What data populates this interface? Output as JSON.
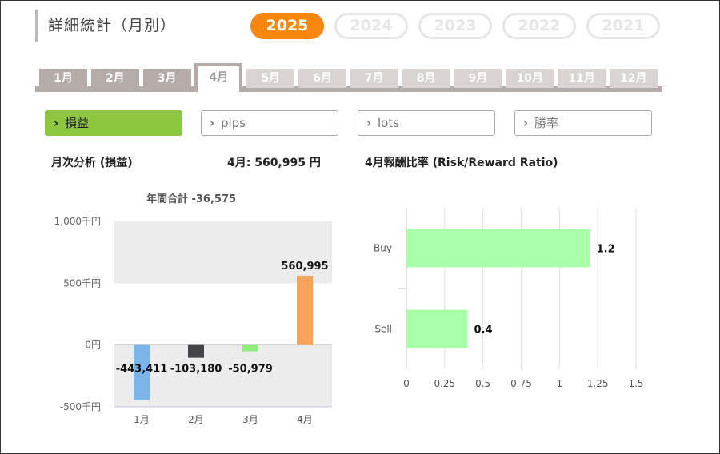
{
  "header": {
    "title": "詳細統計（月別）"
  },
  "years": [
    {
      "label": "2025",
      "active": true
    },
    {
      "label": "2024",
      "active": false
    },
    {
      "label": "2023",
      "active": false
    },
    {
      "label": "2022",
      "active": false
    },
    {
      "label": "2021",
      "active": false
    }
  ],
  "months": [
    {
      "label": "1月",
      "state": "enabled"
    },
    {
      "label": "2月",
      "state": "enabled"
    },
    {
      "label": "3月",
      "state": "enabled"
    },
    {
      "label": "4月",
      "state": "active"
    },
    {
      "label": "5月",
      "state": "disabled"
    },
    {
      "label": "6月",
      "state": "disabled"
    },
    {
      "label": "7月",
      "state": "disabled"
    },
    {
      "label": "8月",
      "state": "disabled"
    },
    {
      "label": "9月",
      "state": "disabled"
    },
    {
      "label": "10月",
      "state": "disabled"
    },
    {
      "label": "11月",
      "state": "disabled"
    },
    {
      "label": "12月",
      "state": "disabled"
    }
  ],
  "metrics": [
    {
      "label": "損益",
      "active": true
    },
    {
      "label": "pips",
      "active": false
    },
    {
      "label": "lots",
      "active": false
    },
    {
      "label": "勝率",
      "active": false
    }
  ],
  "labels": {
    "monthly_analysis": "月次分析 (損益)",
    "month_total": "4月:  560,995 円",
    "rr_title": "4月報酬比率 (Risk/Reward Ratio)"
  },
  "colors": {
    "accent": "#f7870e",
    "metric_active": "#8dc63f",
    "tab_gray": "#b5aba8"
  },
  "chart_data": [
    {
      "type": "bar",
      "title": "年間合計 -36,575",
      "categories": [
        "1月",
        "2月",
        "3月",
        "4月"
      ],
      "values": [
        -443411,
        -103180,
        -50979,
        560995
      ],
      "value_labels": [
        "-443,411",
        "-103,180",
        "-50,979",
        "560,995"
      ],
      "bar_colors": [
        "#7cb5ec",
        "#434348",
        "#90ed7d",
        "#f7a35c"
      ],
      "ylim": [
        -500000,
        1000000
      ],
      "yticks": [
        1000000,
        500000,
        0,
        -500000
      ],
      "ytick_labels": [
        "1,000千円",
        "500千円",
        "0円",
        "-500千円"
      ],
      "grid": "alternating bands"
    },
    {
      "type": "bar",
      "orientation": "horizontal",
      "categories": [
        "Buy",
        "Sell"
      ],
      "values": [
        1.2,
        0.4
      ],
      "value_labels": [
        "1.2",
        "0.4"
      ],
      "bar_color": "#aaffaa",
      "xlim": [
        0,
        1.5
      ],
      "xticks": [
        0,
        0.25,
        0.5,
        0.75,
        1,
        1.25,
        1.5
      ],
      "xtick_labels": [
        "0",
        "0.25",
        "0.5",
        "0.75",
        "1",
        "1.25",
        "1.5"
      ],
      "grid": true
    }
  ]
}
